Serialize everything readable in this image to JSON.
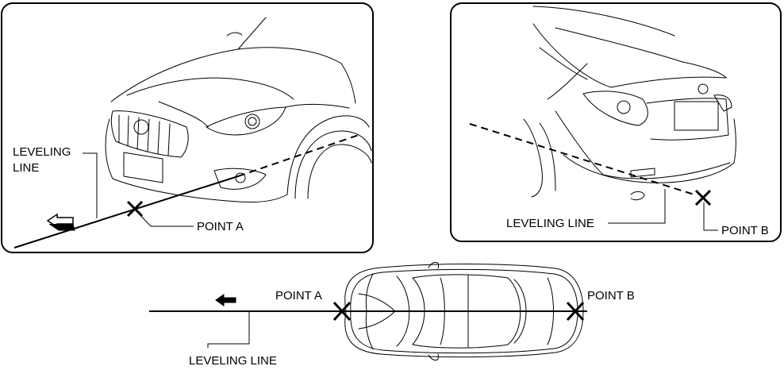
{
  "front_panel": {
    "leveling_line_label_1": "LEVELING",
    "leveling_line_label_2": "LINE",
    "point_label": "POINT A"
  },
  "rear_panel": {
    "leveling_line_label": "LEVELING LINE",
    "point_label": "POINT B"
  },
  "top_view": {
    "point_a_label": "POINT A",
    "point_b_label": "POINT B",
    "leveling_line_label": "LEVELING LINE"
  }
}
